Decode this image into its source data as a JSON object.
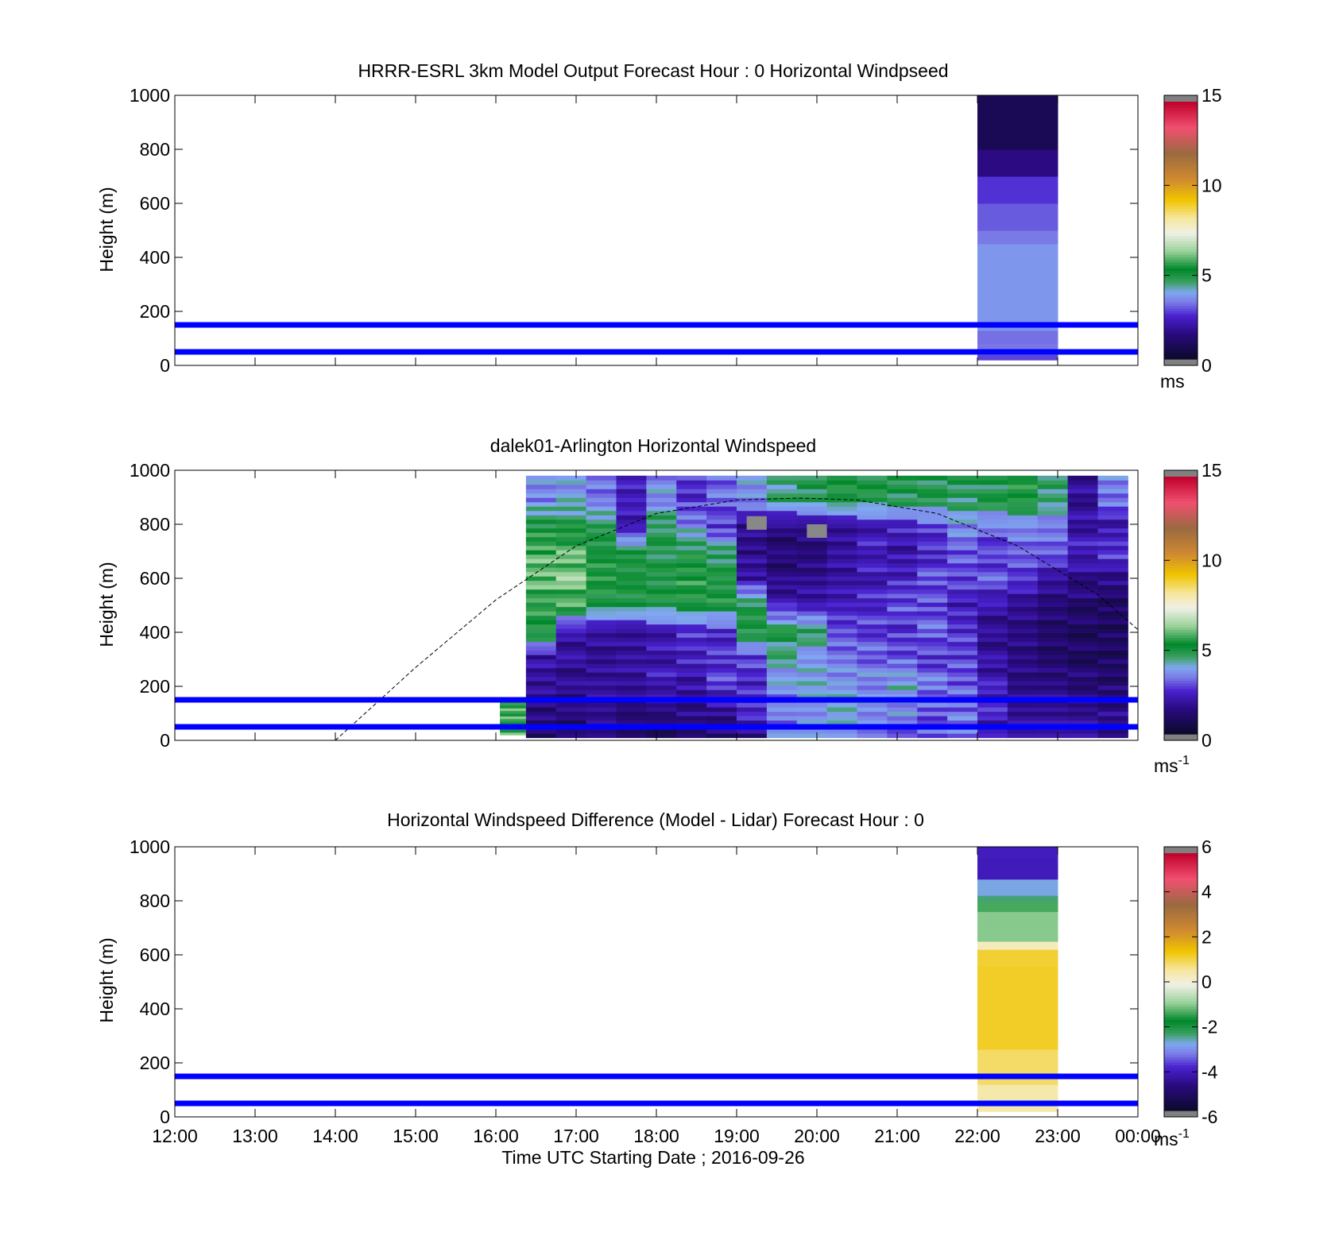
{
  "figure": {
    "xlabel": "Time UTC  Starting Date ; 2016-09-26",
    "xticks": [
      "12:00",
      "13:00",
      "14:00",
      "15:00",
      "16:00",
      "17:00",
      "18:00",
      "19:00",
      "20:00",
      "21:00",
      "22:00",
      "23:00",
      "00:00"
    ]
  },
  "chart_data": [
    {
      "type": "heatmap",
      "title": "HRRR-ESRL 3km Model Output   Forecast Hour : 0 Horizontal Windpseed",
      "ylabel": "Height (m)",
      "xlim_hours": [
        12,
        24
      ],
      "ylim": [
        0,
        1000
      ],
      "yticks": [
        0,
        200,
        400,
        600,
        800,
        1000
      ],
      "colorbar": {
        "min": 0,
        "max": 15,
        "ticks": [
          "0",
          "5",
          "10",
          "15"
        ],
        "unit": "ms"
      },
      "reference_lines_m": [
        50,
        150
      ],
      "reference_line_color": "#0000ff",
      "data_columns": [
        {
          "x_start": 22,
          "x_end": 23,
          "layers": [
            {
              "y0": 20,
              "y1": 40,
              "value": 3.0
            },
            {
              "y0": 40,
              "y1": 80,
              "value": 3.2
            },
            {
              "y0": 80,
              "y1": 130,
              "value": 3.3
            },
            {
              "y0": 130,
              "y1": 450,
              "value": 3.5
            },
            {
              "y0": 450,
              "y1": 500,
              "value": 3.3
            },
            {
              "y0": 500,
              "y1": 600,
              "value": 3.2
            },
            {
              "y0": 600,
              "y1": 700,
              "value": 2.6
            },
            {
              "y0": 700,
              "y1": 800,
              "value": 1.6
            },
            {
              "y0": 800,
              "y1": 1000,
              "value": 0.6
            }
          ]
        }
      ]
    },
    {
      "type": "heatmap",
      "title": "dalek01-Arlington  Horizontal Windspeed",
      "ylabel": "Height (m)",
      "xlim_hours": [
        12,
        24
      ],
      "ylim": [
        0,
        1000
      ],
      "yticks": [
        0,
        200,
        400,
        600,
        800,
        1000
      ],
      "colorbar": {
        "min": 0,
        "max": 15,
        "ticks": [
          "0",
          "5",
          "10",
          "15"
        ],
        "unit": "ms",
        "unit_exp": "-1"
      },
      "reference_lines_m": [
        50,
        150
      ],
      "reference_line_color": "#0000ff",
      "data_range_hours": [
        16.375,
        23.875
      ],
      "data_height_range_m": [
        10,
        980
      ],
      "missing_value_color": "#888888",
      "profile_columns": [
        {
          "x": 16.375,
          "values": [
            1.2,
            1.4,
            1.8,
            2.0,
            5.2,
            5.4,
            6.0,
            5.8,
            5.0,
            3.5
          ]
        },
        {
          "x": 16.75,
          "values": [
            1.0,
            1.3,
            1.6,
            1.8,
            2.0,
            5.6,
            6.2,
            5.8,
            5.0,
            3.8
          ]
        },
        {
          "x": 17.125,
          "values": [
            1.3,
            1.6,
            1.8,
            1.6,
            1.8,
            4.8,
            5.4,
            5.0,
            4.6,
            3.2
          ]
        },
        {
          "x": 17.5,
          "values": [
            1.0,
            1.4,
            1.9,
            2.0,
            1.8,
            5.0,
            5.2,
            5.0,
            2.2,
            2.4
          ]
        },
        {
          "x": 17.875,
          "values": [
            0.8,
            1.8,
            2.3,
            2.1,
            2.2,
            5.0,
            5.0,
            4.8,
            4.8,
            3.6
          ]
        },
        {
          "x": 18.25,
          "values": [
            1.5,
            1.6,
            2.0,
            2.4,
            2.6,
            5.2,
            5.4,
            5.0,
            3.6,
            2.6
          ]
        },
        {
          "x": 18.625,
          "values": [
            1.2,
            1.8,
            2.8,
            2.6,
            2.5,
            5.2,
            5.0,
            4.6,
            2.6,
            3.2
          ]
        },
        {
          "x": 19.0,
          "values": [
            1.6,
            2.6,
            2.4,
            2.8,
            5.0,
            4.8,
            2.0,
            1.6,
            1.6,
            3.6
          ]
        },
        {
          "x": 19.375,
          "values": [
            3.4,
            3.2,
            3.6,
            4.2,
            5.0,
            2.2,
            1.4,
            1.2,
            1.4,
            4.4
          ]
        },
        {
          "x": 19.75,
          "values": [
            3.6,
            3.4,
            4.0,
            3.5,
            4.6,
            2.0,
            1.6,
            1.2,
            1.5,
            4.6
          ]
        },
        {
          "x": 20.125,
          "values": [
            3.6,
            4.2,
            3.8,
            3.4,
            3.0,
            2.4,
            2.0,
            2.0,
            1.8,
            5.2
          ]
        },
        {
          "x": 20.5,
          "values": [
            3.4,
            3.8,
            3.6,
            3.2,
            2.8,
            2.6,
            2.2,
            2.4,
            2.2,
            5.0
          ]
        },
        {
          "x": 20.875,
          "values": [
            3.2,
            3.6,
            4.0,
            3.0,
            2.6,
            3.0,
            2.4,
            2.0,
            2.4,
            4.8
          ]
        },
        {
          "x": 21.25,
          "values": [
            3.0,
            3.0,
            3.4,
            2.6,
            3.2,
            2.8,
            3.0,
            2.4,
            2.8,
            4.8
          ]
        },
        {
          "x": 21.625,
          "values": [
            3.4,
            3.2,
            3.0,
            2.8,
            2.6,
            2.2,
            2.8,
            3.0,
            3.6,
            4.6
          ]
        },
        {
          "x": 22.0,
          "values": [
            2.0,
            2.4,
            2.2,
            1.8,
            1.6,
            2.0,
            3.0,
            2.6,
            3.2,
            4.8
          ]
        },
        {
          "x": 22.375,
          "values": [
            1.8,
            1.6,
            1.4,
            1.4,
            1.4,
            1.6,
            2.6,
            3.0,
            3.4,
            5.2
          ]
        },
        {
          "x": 22.75,
          "values": [
            2.0,
            1.8,
            1.6,
            1.2,
            1.2,
            1.4,
            2.0,
            3.2,
            3.4,
            4.6
          ]
        },
        {
          "x": 23.125,
          "values": [
            2.2,
            1.8,
            1.4,
            1.0,
            1.0,
            1.2,
            1.6,
            2.4,
            2.0,
            1.8
          ]
        },
        {
          "x": 23.5,
          "values": [
            1.8,
            1.6,
            1.2,
            1.0,
            1.0,
            1.0,
            1.6,
            2.8,
            2.0,
            3.4
          ]
        }
      ],
      "extra_patch": {
        "x_start": 16.05,
        "x_end": 16.375,
        "y0": 20,
        "y1": 140,
        "value": 5.6
      },
      "missing_cells": [
        {
          "x0": 19.125,
          "x1": 19.375,
          "y0": 780,
          "y1": 830
        },
        {
          "x0": 19.875,
          "x1": 20.125,
          "y0": 750,
          "y1": 800
        }
      ],
      "overlay_curve": {
        "style": "dashed",
        "x_hours": [
          14.0,
          15.0,
          16.0,
          17.0,
          18.0,
          19.0,
          19.8,
          20.5,
          21.5,
          22.5,
          23.5,
          24.0
        ],
        "y_m": [
          0,
          270,
          520,
          720,
          840,
          890,
          897,
          890,
          840,
          720,
          540,
          410
        ]
      }
    },
    {
      "type": "heatmap",
      "title": "Horizontal Windspeed Difference (Model - Lidar) Forecast Hour : 0",
      "ylabel": "Height (m)",
      "xlim_hours": [
        12,
        24
      ],
      "ylim": [
        0,
        1000
      ],
      "yticks": [
        0,
        200,
        400,
        600,
        800,
        1000
      ],
      "colorbar": {
        "min": -6,
        "max": 6,
        "ticks": [
          "-6",
          "-4",
          "-2",
          "0",
          "2",
          "4",
          "6"
        ],
        "unit": "ms",
        "unit_exp": "-1"
      },
      "reference_lines_m": [
        50,
        150
      ],
      "reference_line_color": "#0000ff",
      "data_columns": [
        {
          "x_start": 22,
          "x_end": 23,
          "layers": [
            {
              "y0": 20,
              "y1": 120,
              "value": 0.6
            },
            {
              "y0": 120,
              "y1": 250,
              "value": 0.8
            },
            {
              "y0": 250,
              "y1": 560,
              "value": 1.3
            },
            {
              "y0": 560,
              "y1": 620,
              "value": 1.0
            },
            {
              "y0": 620,
              "y1": 650,
              "value": 0.3
            },
            {
              "y0": 650,
              "y1": 760,
              "value": -0.9
            },
            {
              "y0": 760,
              "y1": 800,
              "value": -1.5
            },
            {
              "y0": 800,
              "y1": 820,
              "value": -2.4
            },
            {
              "y0": 820,
              "y1": 880,
              "value": -3.0
            },
            {
              "y0": 880,
              "y1": 960,
              "value": -4.2
            },
            {
              "y0": 960,
              "y1": 1000,
              "value": -4.0
            }
          ]
        }
      ]
    }
  ],
  "colormap_stops": [
    {
      "t": 0.0,
      "color": "#0a0a2a"
    },
    {
      "t": 0.1,
      "color": "#2a0a80"
    },
    {
      "t": 0.17,
      "color": "#4a22d0"
    },
    {
      "t": 0.22,
      "color": "#7a7ae6"
    },
    {
      "t": 0.26,
      "color": "#80a8f0"
    },
    {
      "t": 0.3,
      "color": "#3aa060"
    },
    {
      "t": 0.35,
      "color": "#00882a"
    },
    {
      "t": 0.42,
      "color": "#9ad29a"
    },
    {
      "t": 0.49,
      "color": "#f0f0e6"
    },
    {
      "t": 0.55,
      "color": "#f6e69a"
    },
    {
      "t": 0.62,
      "color": "#f0c400"
    },
    {
      "t": 0.7,
      "color": "#d08a30"
    },
    {
      "t": 0.8,
      "color": "#9a6a40"
    },
    {
      "t": 0.9,
      "color": "#f05070"
    },
    {
      "t": 1.0,
      "color": "#c0002a"
    }
  ],
  "colorbar_end_color": "#808080"
}
